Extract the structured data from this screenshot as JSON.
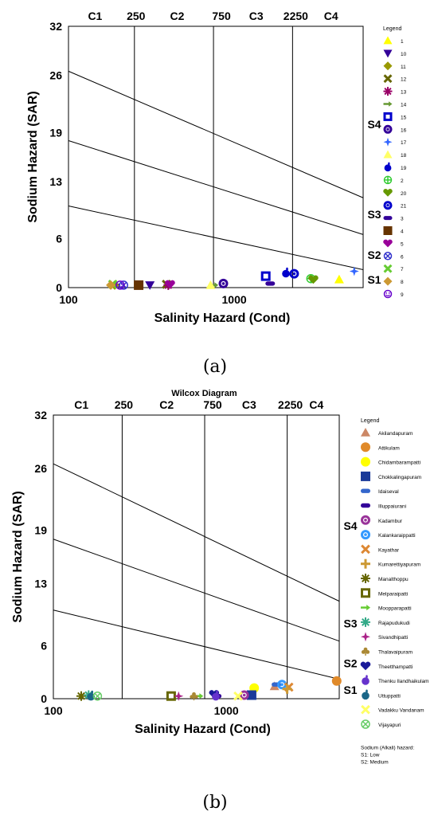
{
  "figure": {
    "caption_a": "(a)",
    "caption_b": "(b)"
  },
  "chart_data": [
    {
      "type": "scatter",
      "title": "",
      "xlabel": "Salinity Hazard (Cond)",
      "ylabel": "Sodium Hazard (SAR)",
      "x_scale": "log",
      "xlim": [
        100,
        6000
      ],
      "ylim": [
        0,
        32
      ],
      "x_tick_labels": [
        "100",
        "1000"
      ],
      "y_ticks": [
        0,
        6,
        13,
        19,
        26,
        32
      ],
      "class_lines_x": [
        250,
        750,
        2250
      ],
      "top_labels": [
        "C1",
        "250",
        "C2",
        "750",
        "C3",
        "2250",
        "C4"
      ],
      "hazard_lines": [
        {
          "x": [
            100,
            6000
          ],
          "y": [
            26.5,
            11.0
          ]
        },
        {
          "x": [
            100,
            6000
          ],
          "y": [
            18.0,
            6.5
          ]
        },
        {
          "x": [
            100,
            6000
          ],
          "y": [
            10.0,
            2.2
          ]
        }
      ],
      "s_labels": [
        {
          "text": "S4",
          "y": 20.0
        },
        {
          "text": "S3",
          "y": 9.0
        },
        {
          "text": "S2",
          "y": 4.0
        },
        {
          "text": "S1",
          "y": 1.0
        }
      ],
      "legend_title": "Legend",
      "series": [
        {
          "name": "1",
          "color": "#ffff00",
          "marker": "tri-up",
          "x": 4300,
          "y": 1.0
        },
        {
          "name": "10",
          "color": "#330099",
          "marker": "tri-down",
          "x": 310,
          "y": 0.3
        },
        {
          "name": "11",
          "color": "#999900",
          "marker": "diamond",
          "x": 190,
          "y": 0.3
        },
        {
          "name": "12",
          "color": "#666600",
          "marker": "x",
          "x": 390,
          "y": 0.4
        },
        {
          "name": "13",
          "color": "#990066",
          "marker": "star",
          "x": 400,
          "y": 0.3
        },
        {
          "name": "14",
          "color": "#669933",
          "marker": "arrow",
          "x": 750,
          "y": 0.3
        },
        {
          "name": "15",
          "color": "#0000cc",
          "marker": "square-open",
          "x": 1550,
          "y": 1.4
        },
        {
          "name": "16",
          "color": "#330099",
          "marker": "circle-target",
          "x": 860,
          "y": 0.5
        },
        {
          "name": "17",
          "color": "#3366ff",
          "marker": "plus-star",
          "x": 5300,
          "y": 2.0
        },
        {
          "name": "18",
          "color": "#ffff66",
          "marker": "tri-up",
          "x": 720,
          "y": 0.3
        },
        {
          "name": "19",
          "color": "#0000cc",
          "marker": "apple",
          "x": 2050,
          "y": 1.8
        },
        {
          "name": "2",
          "color": "#33cc33",
          "marker": "circle-plus",
          "x": 2900,
          "y": 1.1
        },
        {
          "name": "20",
          "color": "#669900",
          "marker": "heart",
          "x": 3000,
          "y": 1.0
        },
        {
          "name": "21",
          "color": "#0000cc",
          "marker": "circle-target",
          "x": 2300,
          "y": 1.7
        },
        {
          "name": "3",
          "color": "#330099",
          "marker": "pill",
          "x": 1650,
          "y": 0.5
        },
        {
          "name": "4",
          "color": "#663300",
          "marker": "square",
          "x": 265,
          "y": 0.3
        },
        {
          "name": "5",
          "color": "#990099",
          "marker": "heart",
          "x": 410,
          "y": 0.4
        },
        {
          "name": "6",
          "color": "#3333cc",
          "marker": "circle-x",
          "x": 215,
          "y": 0.3
        },
        {
          "name": "7",
          "color": "#66cc33",
          "marker": "x",
          "x": 185,
          "y": 0.4
        },
        {
          "name": "8",
          "color": "#cc9933",
          "marker": "diamond",
          "x": 180,
          "y": 0.3
        },
        {
          "name": "9",
          "color": "#6600cc",
          "marker": "smiley",
          "x": 205,
          "y": 0.3
        }
      ]
    },
    {
      "type": "scatter",
      "title": "Wilcox Diagram",
      "xlabel": "Salinity Hazard (Cond)",
      "ylabel": "Sodium Hazard (SAR)",
      "x_scale": "log",
      "xlim": [
        100,
        4500
      ],
      "ylim": [
        0,
        32
      ],
      "x_tick_labels": [
        "100",
        "1000"
      ],
      "y_ticks": [
        0,
        6,
        13,
        19,
        26,
        32
      ],
      "class_lines_x": [
        250,
        750,
        2250
      ],
      "top_labels": [
        "C1",
        "250",
        "C2",
        "750",
        "C3",
        "2250",
        "C4"
      ],
      "hazard_lines": [
        {
          "x": [
            100,
            4500
          ],
          "y": [
            26.5,
            11.0
          ]
        },
        {
          "x": [
            100,
            4500
          ],
          "y": [
            18.0,
            6.5
          ]
        },
        {
          "x": [
            100,
            4500
          ],
          "y": [
            10.0,
            2.2
          ]
        }
      ],
      "s_labels": [
        {
          "text": "S4",
          "y": 19.5
        },
        {
          "text": "S3",
          "y": 8.5
        },
        {
          "text": "S2",
          "y": 4.0
        },
        {
          "text": "S1",
          "y": 1.0
        }
      ],
      "legend_title": "Legend",
      "legend_note": [
        "Sodium (Alkali) hazard:",
        "S1: Low",
        "S2: Medium"
      ],
      "series": [
        {
          "name": "Akilandapuram",
          "color": "#cc8866",
          "marker": "tri-up",
          "x": 1900,
          "y": 1.4
        },
        {
          "name": "Attikulam",
          "color": "#e08a2a",
          "marker": "circle",
          "x": 4350,
          "y": 2.0
        },
        {
          "name": "Chidambarampatti",
          "color": "#ffff00",
          "marker": "circle",
          "x": 1450,
          "y": 1.2
        },
        {
          "name": "Chokkalingapuram",
          "color": "#1a3a99",
          "marker": "square",
          "x": 1400,
          "y": 0.4
        },
        {
          "name": "Idaiseval",
          "color": "#3366cc",
          "marker": "pill",
          "x": 1950,
          "y": 1.6
        },
        {
          "name": "Illuppaiurani",
          "color": "#330099",
          "marker": "pill",
          "x": 880,
          "y": 0.3
        },
        {
          "name": "Kadambur",
          "color": "#993399",
          "marker": "circle-target",
          "x": 1270,
          "y": 0.4
        },
        {
          "name": "Kalankaraippatti",
          "color": "#3399ff",
          "marker": "circle-target",
          "x": 2100,
          "y": 1.6
        },
        {
          "name": "Kayathar",
          "color": "#dd8833",
          "marker": "x",
          "x": 2300,
          "y": 1.3
        },
        {
          "name": "Kumarettiyapuram",
          "color": "#cc9933",
          "marker": "plus",
          "x": 2250,
          "y": 1.1
        },
        {
          "name": "Manalthoppu",
          "color": "#666600",
          "marker": "star",
          "x": 145,
          "y": 0.3
        },
        {
          "name": "Melparaipatti",
          "color": "#666600",
          "marker": "square-open",
          "x": 480,
          "y": 0.3
        },
        {
          "name": "Moopparapatti",
          "color": "#66cc33",
          "marker": "arrow",
          "x": 690,
          "y": 0.3
        },
        {
          "name": "Rajapudukudi",
          "color": "#33aa88",
          "marker": "star",
          "x": 160,
          "y": 0.4
        },
        {
          "name": "Sivandhipatti",
          "color": "#aa2288",
          "marker": "plus-star",
          "x": 530,
          "y": 0.3
        },
        {
          "name": "Thalavaipuram",
          "color": "#aa8833",
          "marker": "club",
          "x": 650,
          "y": 0.3
        },
        {
          "name": "Theetthampatti",
          "color": "#1a1a99",
          "marker": "heart",
          "x": 850,
          "y": 0.5
        },
        {
          "name": "Thenku Ilandhaikulam",
          "color": "#6633cc",
          "marker": "apple",
          "x": 870,
          "y": 0.3
        },
        {
          "name": "Uttuppatti",
          "color": "#1a6688",
          "marker": "apple",
          "x": 165,
          "y": 0.3
        },
        {
          "name": "Vadakku Vandanam",
          "color": "#ffff66",
          "marker": "x",
          "x": 1170,
          "y": 0.3
        },
        {
          "name": "Vijayapuri",
          "color": "#66cc66",
          "marker": "circle-x",
          "x": 180,
          "y": 0.3
        }
      ]
    }
  ]
}
